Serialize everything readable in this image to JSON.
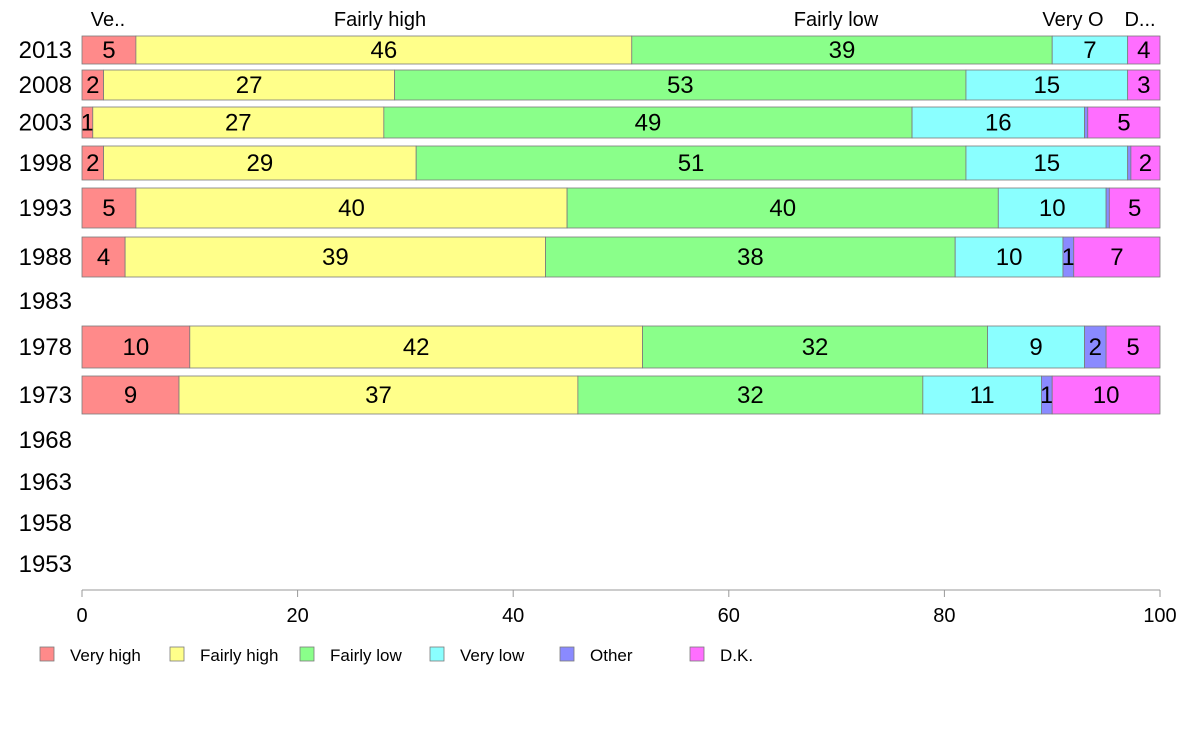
{
  "chart_data": {
    "type": "bar",
    "orientation": "horizontal",
    "stacked": true,
    "categories": [
      "2013",
      "2008",
      "2003",
      "1998",
      "1993",
      "1988",
      "1983",
      "1978",
      "1973",
      "1968",
      "1963",
      "1958",
      "1953"
    ],
    "series": [
      {
        "name": "Very high",
        "color": "#ff8a8a",
        "values": [
          5,
          2,
          1,
          2,
          5,
          4,
          null,
          10,
          9,
          null,
          null,
          null,
          null
        ]
      },
      {
        "name": "Fairly high",
        "color": "#ffff8a",
        "values": [
          46,
          27,
          27,
          29,
          40,
          39,
          null,
          42,
          37,
          null,
          null,
          null,
          null
        ]
      },
      {
        "name": "Fairly low",
        "color": "#8aff8a",
        "values": [
          39,
          53,
          49,
          51,
          40,
          38,
          null,
          32,
          32,
          null,
          null,
          null,
          null
        ]
      },
      {
        "name": "Very low",
        "color": "#8affff",
        "values": [
          7,
          15,
          16,
          15,
          10,
          10,
          null,
          9,
          11,
          null,
          null,
          null,
          null
        ]
      },
      {
        "name": "Other",
        "color": "#8a8aff",
        "values": [
          0,
          0,
          0.3,
          0.3,
          0.3,
          1,
          null,
          2,
          1,
          null,
          null,
          null,
          null
        ]
      },
      {
        "name": "D.K.",
        "color": "#ff6eff",
        "values": [
          4,
          3,
          5,
          2,
          5,
          7,
          null,
          5,
          10,
          null,
          null,
          null,
          null
        ]
      }
    ],
    "top_labels": [
      "Ve..",
      "Fairly high",
      "Fairly low",
      "Very O",
      "D..."
    ],
    "xlim": [
      0,
      100
    ],
    "xticks": [
      0,
      20,
      40,
      60,
      80,
      100
    ],
    "grid": false,
    "legend_position": "bottom"
  }
}
